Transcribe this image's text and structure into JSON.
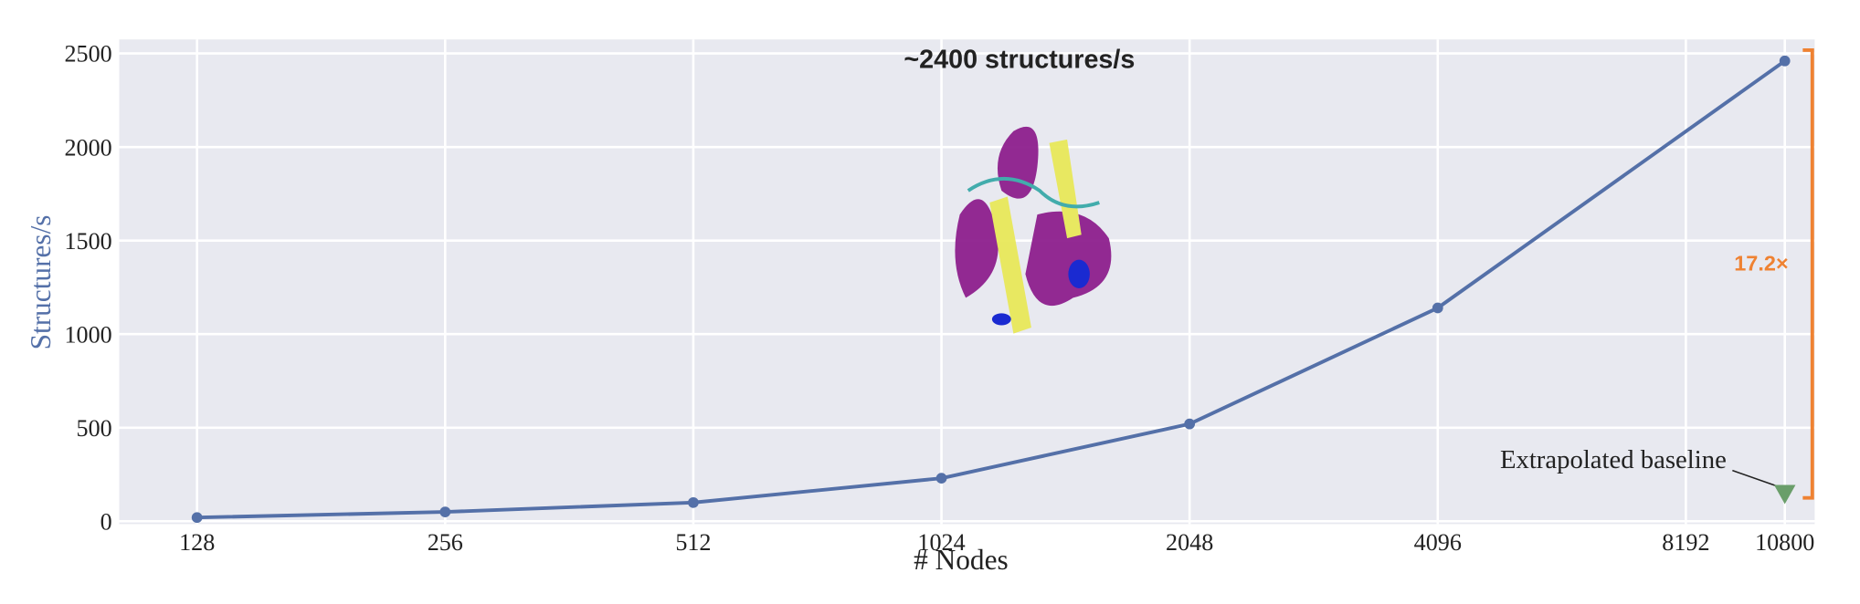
{
  "chart_data": {
    "type": "line",
    "title": "~2400 structures/s",
    "x_label": "# Nodes",
    "y_label": "Structures/s",
    "x": [
      128,
      256,
      512,
      1024,
      2048,
      4096,
      10800
    ],
    "series": [
      {
        "name": "Structures/s",
        "color": "#5470a8",
        "values": [
          20,
          50,
          100,
          230,
          520,
          1140,
          2460
        ]
      },
      {
        "name": "Extrapolated baseline",
        "color": "#6a9e6a",
        "values": [
          null,
          null,
          null,
          null,
          null,
          null,
          143
        ]
      }
    ],
    "xscale": "log2",
    "xlim": [
      103,
      11740
    ],
    "xticks": [
      128,
      256,
      512,
      1024,
      2048,
      4096,
      8192,
      10800
    ],
    "ylim": [
      -15,
      2575
    ],
    "yticks": [
      0,
      500,
      1000,
      1500,
      2000,
      2500
    ],
    "grid": true,
    "annotations": {
      "speedup": "17.2×",
      "baseline": "Extrapolated baseline"
    }
  }
}
